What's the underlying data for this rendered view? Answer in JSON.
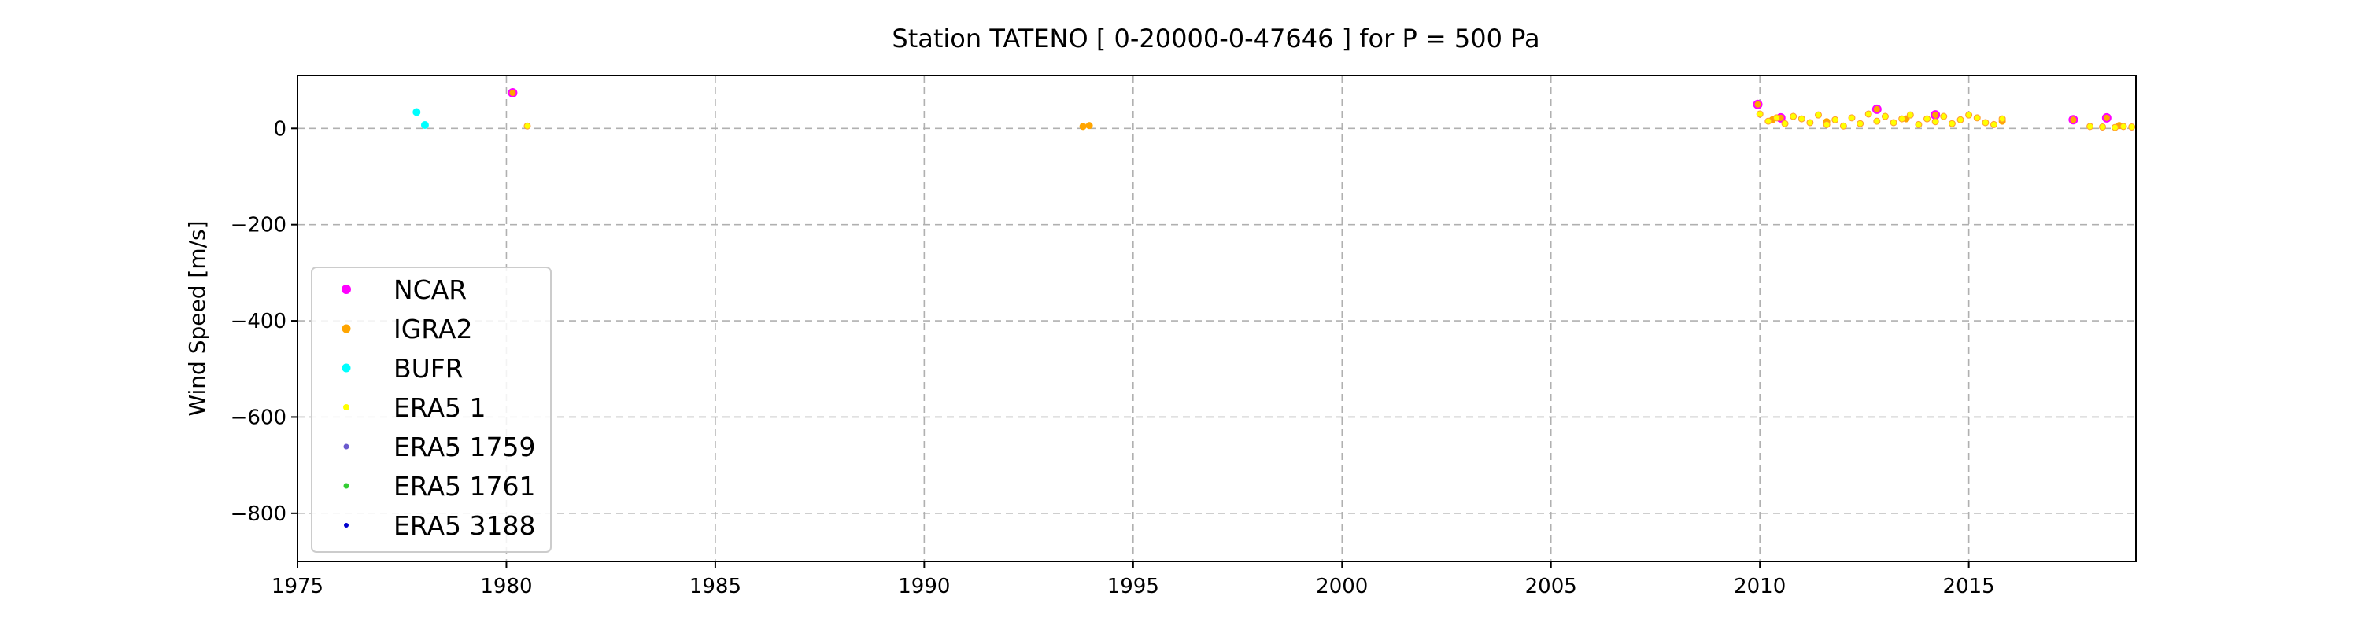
{
  "chart_data": {
    "type": "scatter",
    "title": "Station  TATENO [ 0-20000-0-47646 ]  for P = 500 Pa",
    "xlabel": "",
    "ylabel": "Wind Speed [m/s]",
    "xlim": [
      1975,
      2019
    ],
    "ylim": [
      -900,
      110
    ],
    "x_ticks": [
      1975,
      1980,
      1985,
      1990,
      1995,
      2000,
      2005,
      2010,
      2015
    ],
    "y_ticks": [
      -800,
      -600,
      -400,
      -200,
      0
    ],
    "grid": true,
    "legend_position": "lower-left",
    "series": [
      {
        "name": "NCAR",
        "color": "#ff00ff",
        "points": [
          [
            1980.15,
            74
          ],
          [
            2009.95,
            50
          ],
          [
            2010.5,
            22
          ],
          [
            2012.8,
            40
          ],
          [
            2014.2,
            28
          ],
          [
            2017.5,
            18
          ],
          [
            2018.3,
            22
          ]
        ]
      },
      {
        "name": "IGRA2",
        "color": "#ffa500",
        "points": [
          [
            1993.8,
            4
          ],
          [
            1993.95,
            6
          ],
          [
            2010.3,
            18
          ],
          [
            2011.6,
            14
          ],
          [
            2013.5,
            20
          ],
          [
            2015.8,
            15
          ],
          [
            2018.6,
            6
          ]
        ]
      },
      {
        "name": "BUFR",
        "color": "#00ffff",
        "points": [
          [
            1977.85,
            34
          ],
          [
            1978.05,
            7
          ]
        ]
      },
      {
        "name": "ERA5 1",
        "color": "#ffff00",
        "points": [
          [
            1980.5,
            5
          ],
          [
            2010.0,
            30
          ],
          [
            2010.2,
            15
          ],
          [
            2010.4,
            22
          ],
          [
            2010.6,
            10
          ],
          [
            2010.8,
            25
          ],
          [
            2011.0,
            20
          ],
          [
            2011.2,
            12
          ],
          [
            2011.4,
            28
          ],
          [
            2011.6,
            8
          ],
          [
            2011.8,
            18
          ],
          [
            2012.0,
            5
          ],
          [
            2012.2,
            22
          ],
          [
            2012.4,
            10
          ],
          [
            2012.6,
            30
          ],
          [
            2012.8,
            15
          ],
          [
            2013.0,
            25
          ],
          [
            2013.2,
            12
          ],
          [
            2013.4,
            20
          ],
          [
            2013.6,
            28
          ],
          [
            2013.8,
            8
          ],
          [
            2014.0,
            20
          ],
          [
            2014.2,
            14
          ],
          [
            2014.4,
            25
          ],
          [
            2014.6,
            10
          ],
          [
            2014.8,
            18
          ],
          [
            2015.0,
            28
          ],
          [
            2015.2,
            22
          ],
          [
            2015.4,
            12
          ],
          [
            2015.6,
            8
          ],
          [
            2015.8,
            20
          ],
          [
            2017.9,
            4
          ],
          [
            2018.2,
            3
          ],
          [
            2018.5,
            2
          ],
          [
            2018.7,
            4
          ],
          [
            2018.9,
            3
          ]
        ]
      },
      {
        "name": "ERA5 1759",
        "color": "#6a5acd",
        "points": []
      },
      {
        "name": "ERA5 1761",
        "color": "#32cd32",
        "points": []
      },
      {
        "name": "ERA5 3188",
        "color": "#0000cd",
        "points": []
      }
    ]
  }
}
